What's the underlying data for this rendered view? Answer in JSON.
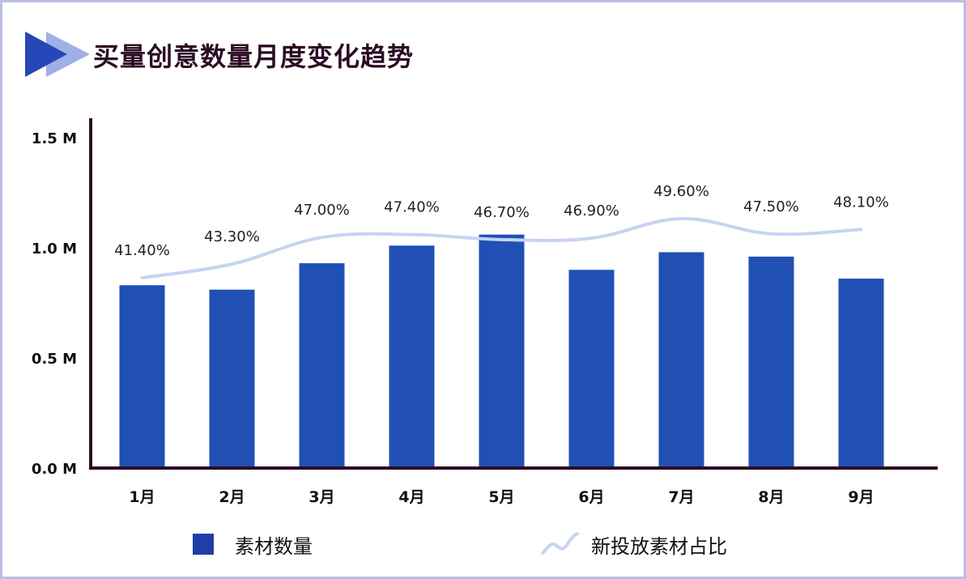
{
  "header": {
    "title": "买量创意数量月度变化趋势"
  },
  "colors": {
    "bar": "#2150b5",
    "line": "#c7d3f2",
    "axis": "#2b0c25",
    "title_icon_dark": "#2547b8",
    "title_icon_light": "#9fb0e8"
  },
  "chart_data": {
    "type": "bar",
    "categories": [
      "1月",
      "2月",
      "3月",
      "4月",
      "5月",
      "6月",
      "7月",
      "8月",
      "9月"
    ],
    "series": [
      {
        "name": "素材数量",
        "type": "bar",
        "axis": "left",
        "values": [
          0.83,
          0.81,
          0.93,
          1.01,
          1.06,
          0.9,
          0.98,
          0.96,
          0.86
        ]
      },
      {
        "name": "新投放素材占比",
        "type": "line",
        "axis": "right",
        "smooth": true,
        "values": [
          41.4,
          43.3,
          47.0,
          47.4,
          46.7,
          46.9,
          49.6,
          47.5,
          48.1
        ],
        "labels": [
          "41.40%",
          "43.30%",
          "47.00%",
          "47.40%",
          "46.70%",
          "46.90%",
          "49.60%",
          "47.50%",
          "48.10%"
        ]
      }
    ],
    "y_ticks": [
      "0.0 M",
      "0.5 M",
      "1.0 M",
      "1.5 M"
    ],
    "y_tick_values": [
      0,
      0.5,
      1.0,
      1.5
    ],
    "ylim": [
      0,
      1.6
    ],
    "y2lim": [
      15,
      65
    ],
    "legend_position": "bottom",
    "grid": false
  },
  "legend": {
    "bar_label": "素材数量",
    "line_label": "新投放素材占比"
  }
}
